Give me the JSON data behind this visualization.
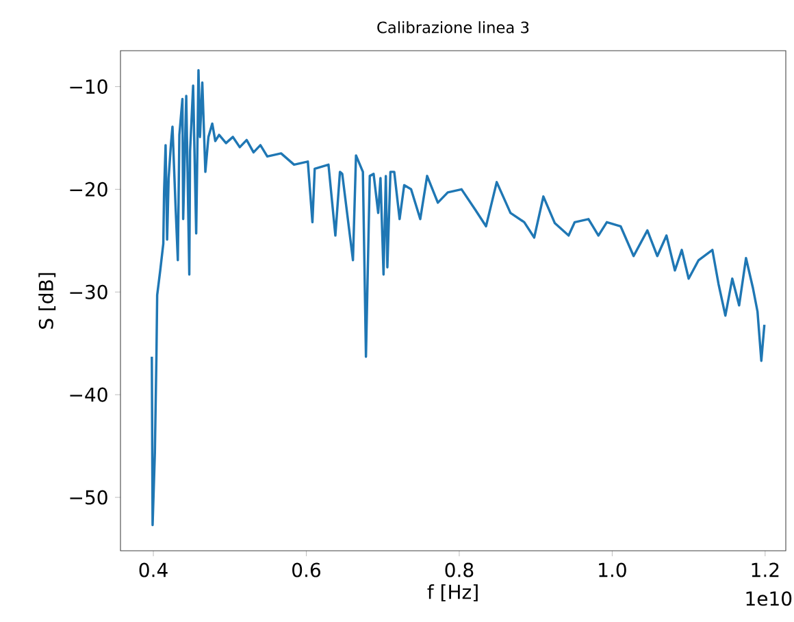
{
  "chart_data": {
    "type": "line",
    "title": "Calibrazione linea 3",
    "xlabel": "f [Hz]",
    "ylabel": "S [dB]",
    "color": "#1f77b4",
    "xlim": [
      0.357,
      1.227
    ],
    "ylim": [
      -55.2,
      -6.5
    ],
    "xticks": [
      0.4,
      0.6,
      0.8,
      {
        "value": 1.0,
        "label": "1.0"
      },
      1.2
    ],
    "yticks": [
      {
        "value": -50,
        "label": "−50"
      },
      {
        "value": -40,
        "label": "−40"
      },
      {
        "value": -30,
        "label": "−30"
      },
      {
        "value": -20,
        "label": "−20"
      },
      {
        "value": -10,
        "label": "−10"
      }
    ],
    "annotations": [
      "1e10"
    ],
    "x": [
      0.398,
      0.399,
      0.402,
      0.404,
      0.405,
      0.409,
      0.413,
      0.414,
      0.416,
      0.418,
      0.42,
      0.423,
      0.425,
      0.429,
      0.432,
      0.434,
      0.438,
      0.439,
      0.443,
      0.447,
      0.448,
      0.452,
      0.456,
      0.459,
      0.461,
      0.464,
      0.468,
      0.472,
      0.477,
      0.481,
      0.486,
      0.495,
      0.504,
      0.513,
      0.522,
      0.531,
      0.54,
      0.549,
      0.567,
      0.584,
      0.602,
      0.608,
      0.611,
      0.629,
      0.638,
      0.644,
      0.647,
      0.661,
      0.665,
      0.674,
      0.678,
      0.683,
      0.688,
      0.694,
      0.697,
      0.701,
      0.704,
      0.706,
      0.71,
      0.715,
      0.722,
      0.728,
      0.737,
      0.749,
      0.758,
      0.772,
      0.785,
      0.803,
      0.821,
      0.835,
      0.849,
      0.867,
      0.885,
      0.898,
      0.91,
      0.925,
      0.943,
      0.951,
      0.969,
      0.982,
      0.993,
      1.011,
      1.028,
      1.046,
      1.059,
      1.071,
      1.082,
      1.091,
      1.1,
      1.113,
      1.131,
      1.139,
      1.148,
      1.157,
      1.166,
      1.175,
      1.184,
      1.19,
      1.195,
      1.199
    ],
    "values": [
      -36.3,
      -52.7,
      -45.6,
      -36.3,
      -30.3,
      -27.9,
      -25.3,
      -20.3,
      -15.7,
      -24.9,
      -18.9,
      -15.6,
      -13.9,
      -21.6,
      -26.9,
      -14.7,
      -11.2,
      -22.9,
      -10.9,
      -28.3,
      -16.3,
      -9.9,
      -24.3,
      -8.4,
      -14.9,
      -9.6,
      -18.3,
      -14.9,
      -13.6,
      -15.3,
      -14.7,
      -15.5,
      -14.9,
      -15.9,
      -15.2,
      -16.4,
      -15.7,
      -16.8,
      -16.5,
      -17.6,
      -17.3,
      -23.2,
      -18.0,
      -17.6,
      -24.5,
      -18.3,
      -18.5,
      -26.9,
      -16.7,
      -18.3,
      -36.3,
      -18.7,
      -18.5,
      -22.3,
      -18.9,
      -28.3,
      -18.7,
      -27.6,
      -18.3,
      -18.3,
      -22.9,
      -19.6,
      -20.0,
      -22.9,
      -18.7,
      -21.3,
      -20.3,
      -20.0,
      -22.0,
      -23.6,
      -19.3,
      -22.3,
      -23.2,
      -24.7,
      -20.7,
      -23.3,
      -24.5,
      -23.2,
      -22.9,
      -24.5,
      -23.2,
      -23.6,
      -26.5,
      -24.0,
      -26.5,
      -24.5,
      -27.9,
      -25.9,
      -28.7,
      -26.9,
      -25.9,
      -29.2,
      -32.3,
      -28.7,
      -31.3,
      -26.7,
      -29.6,
      -31.9,
      -36.7,
      -33.2
    ]
  }
}
